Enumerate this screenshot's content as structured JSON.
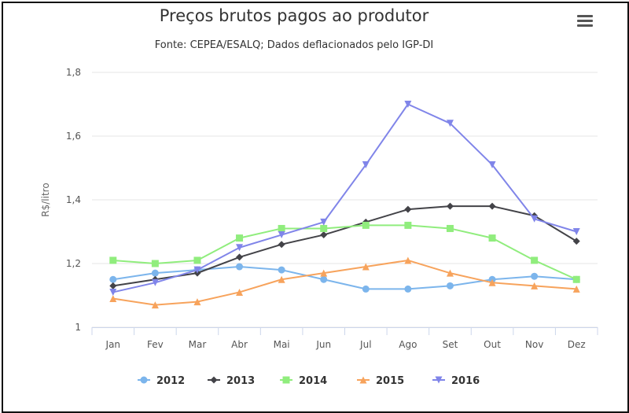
{
  "chart_data": {
    "type": "line",
    "title": "Preços brutos pagos ao produtor",
    "subtitle": "Fonte: CEPEA/ESALQ; Dados deflacionados pelo IGP-DI",
    "ylabel": "R$/litro",
    "xlabel": "",
    "ylim": [
      1,
      1.8
    ],
    "yticks": [
      1,
      1.2,
      1.4,
      1.6,
      1.8
    ],
    "ytick_labels": [
      "1",
      "1,2",
      "1,4",
      "1,6",
      "1,8"
    ],
    "grid": "horizontal",
    "legend_position": "bottom-center",
    "categories": [
      "Jan",
      "Fev",
      "Mar",
      "Abr",
      "Mai",
      "Jun",
      "Jul",
      "Ago",
      "Set",
      "Out",
      "Nov",
      "Dez"
    ],
    "series": [
      {
        "name": "2012",
        "color": "#7cb5ec",
        "marker": "circle",
        "values": [
          1.15,
          1.17,
          1.18,
          1.19,
          1.18,
          1.15,
          1.12,
          1.12,
          1.13,
          1.15,
          1.16,
          1.15
        ]
      },
      {
        "name": "2013",
        "color": "#434348",
        "marker": "diamond",
        "values": [
          1.13,
          1.15,
          1.17,
          1.22,
          1.26,
          1.29,
          1.33,
          1.37,
          1.38,
          1.38,
          1.35,
          1.27
        ]
      },
      {
        "name": "2014",
        "color": "#90ed7d",
        "marker": "square",
        "values": [
          1.21,
          1.2,
          1.21,
          1.28,
          1.31,
          1.31,
          1.32,
          1.32,
          1.31,
          1.28,
          1.21,
          1.15
        ]
      },
      {
        "name": "2015",
        "color": "#f7a35c",
        "marker": "triangle",
        "values": [
          1.09,
          1.07,
          1.08,
          1.11,
          1.15,
          1.17,
          1.19,
          1.21,
          1.17,
          1.14,
          1.13,
          1.12
        ]
      },
      {
        "name": "2016",
        "color": "#8085e9",
        "marker": "triangle-down",
        "values": [
          1.11,
          1.14,
          1.18,
          1.25,
          1.29,
          1.33,
          1.51,
          1.7,
          1.64,
          1.51,
          1.34,
          1.3
        ]
      }
    ]
  },
  "menu": {
    "icon": "hamburger-menu-icon"
  }
}
